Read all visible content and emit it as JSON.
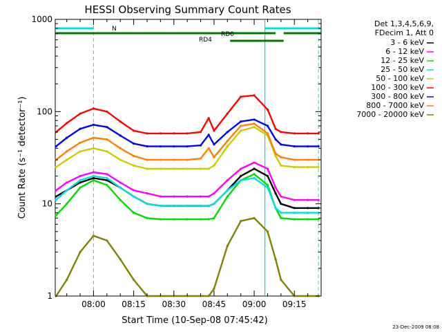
{
  "chart_data": {
    "type": "line",
    "title": "HESSI Observing Summary Count Rates",
    "xlabel": "Start Time (10-Sep-08 07:45:42)",
    "ylabel": "Count Rate (s⁻¹ detector⁻¹)",
    "yscale": "log",
    "xlim": [
      "07:45:42",
      "09:25:00"
    ],
    "ylim": [
      1,
      1000
    ],
    "x_ticks": [
      "08:00",
      "08:15",
      "08:30",
      "08:45",
      "09:00",
      "09:15"
    ],
    "y_ticks": [
      "1",
      "10",
      "100",
      "1000"
    ],
    "grid": false,
    "legend_position": "top-right",
    "legend_header": [
      "Det 1,3,4,5,6,9,",
      "FDecim 1, Att 0"
    ],
    "timestamp": "23-Dec-2009 08:08",
    "x": [
      "07:46",
      "07:50",
      "07:55",
      "08:00",
      "08:05",
      "08:10",
      "08:15",
      "08:20",
      "08:25",
      "08:30",
      "08:35",
      "08:40",
      "08:43",
      "08:45",
      "08:50",
      "08:55",
      "09:00",
      "09:05",
      "09:08",
      "09:10",
      "09:15",
      "09:20",
      "09:24"
    ],
    "series": [
      {
        "name": "3 - 6 keV",
        "color": "#000000",
        "values": [
          12,
          14,
          17,
          19,
          18,
          15,
          12,
          10,
          9.5,
          9.5,
          9.5,
          9.5,
          9.5,
          10,
          14,
          20,
          24,
          20,
          13,
          10,
          9,
          9,
          9
        ]
      },
      {
        "name": "6 - 12 keV",
        "color": "#ff00ff",
        "values": [
          14,
          17,
          20,
          22,
          21,
          17,
          14,
          13,
          12,
          12,
          12,
          12,
          12,
          13,
          18,
          24,
          28,
          24,
          15,
          12,
          11,
          11,
          11
        ]
      },
      {
        "name": "12 - 25 keV",
        "color": "#00dd00",
        "values": [
          7.5,
          10,
          15,
          18,
          16,
          11,
          8,
          7,
          6.8,
          6.8,
          6.8,
          6.8,
          6.8,
          7,
          12,
          18,
          21,
          16,
          9,
          7,
          6.8,
          6.8,
          6.8
        ]
      },
      {
        "name": "25 - 50 keV",
        "color": "#00e0e0",
        "values": [
          11,
          14,
          18,
          20,
          19,
          15,
          12,
          10,
          9.5,
          9.5,
          9.5,
          9.5,
          9.5,
          10,
          14,
          18,
          19,
          15,
          9,
          8,
          8,
          8,
          8
        ]
      },
      {
        "name": "50 - 100 keV",
        "color": "#cccc00",
        "values": [
          25,
          30,
          37,
          40,
          37,
          30,
          26,
          24,
          24,
          24,
          24,
          24,
          24,
          26,
          42,
          62,
          68,
          55,
          33,
          26,
          25,
          25,
          25
        ]
      },
      {
        "name": "100 - 300 keV",
        "color": "#ff0000",
        "values": [
          60,
          75,
          95,
          108,
          100,
          78,
          62,
          58,
          58,
          58,
          58,
          60,
          85,
          62,
          95,
          145,
          150,
          105,
          65,
          60,
          58,
          58,
          58
        ]
      },
      {
        "name": "300 - 800 keV",
        "color": "#0000ff",
        "values": [
          42,
          52,
          65,
          72,
          68,
          55,
          45,
          42,
          42,
          42,
          42,
          43,
          56,
          44,
          60,
          78,
          82,
          70,
          50,
          44,
          42,
          42,
          42
        ]
      },
      {
        "name": "800 - 7000 keV",
        "color": "#ff8000",
        "values": [
          30,
          37,
          46,
          52,
          50,
          40,
          33,
          30,
          30,
          30,
          30,
          31,
          40,
          32,
          48,
          70,
          74,
          58,
          35,
          32,
          30,
          30,
          30
        ]
      },
      {
        "name": "7000 - 20000 keV",
        "color": "#808000",
        "values": [
          1,
          1.5,
          3,
          4.5,
          4,
          2.5,
          1.5,
          1,
          1,
          1,
          1,
          1,
          1,
          1.2,
          3.5,
          6.5,
          7,
          5,
          2.5,
          1.5,
          1,
          1,
          1
        ]
      }
    ],
    "flag_bars": [
      {
        "name": "N",
        "color": "#00e0e0",
        "segments": [
          [
            "07:45:42",
            "08:00:00"
          ],
          [
            "09:04:00",
            "09:25:00"
          ]
        ]
      },
      {
        "name": "RD0",
        "color": "#007700",
        "segments": [
          [
            "07:45:42",
            "09:08:00"
          ],
          [
            "09:11:00",
            "09:25:00"
          ]
        ]
      },
      {
        "name": "RD4",
        "color": "#007700",
        "segments": [
          [
            "08:51:00",
            "09:11:00"
          ]
        ]
      }
    ],
    "vlines_solid": [
      "09:04:00"
    ],
    "vlines_dashed": [
      "08:00:00",
      "09:24:00"
    ]
  }
}
